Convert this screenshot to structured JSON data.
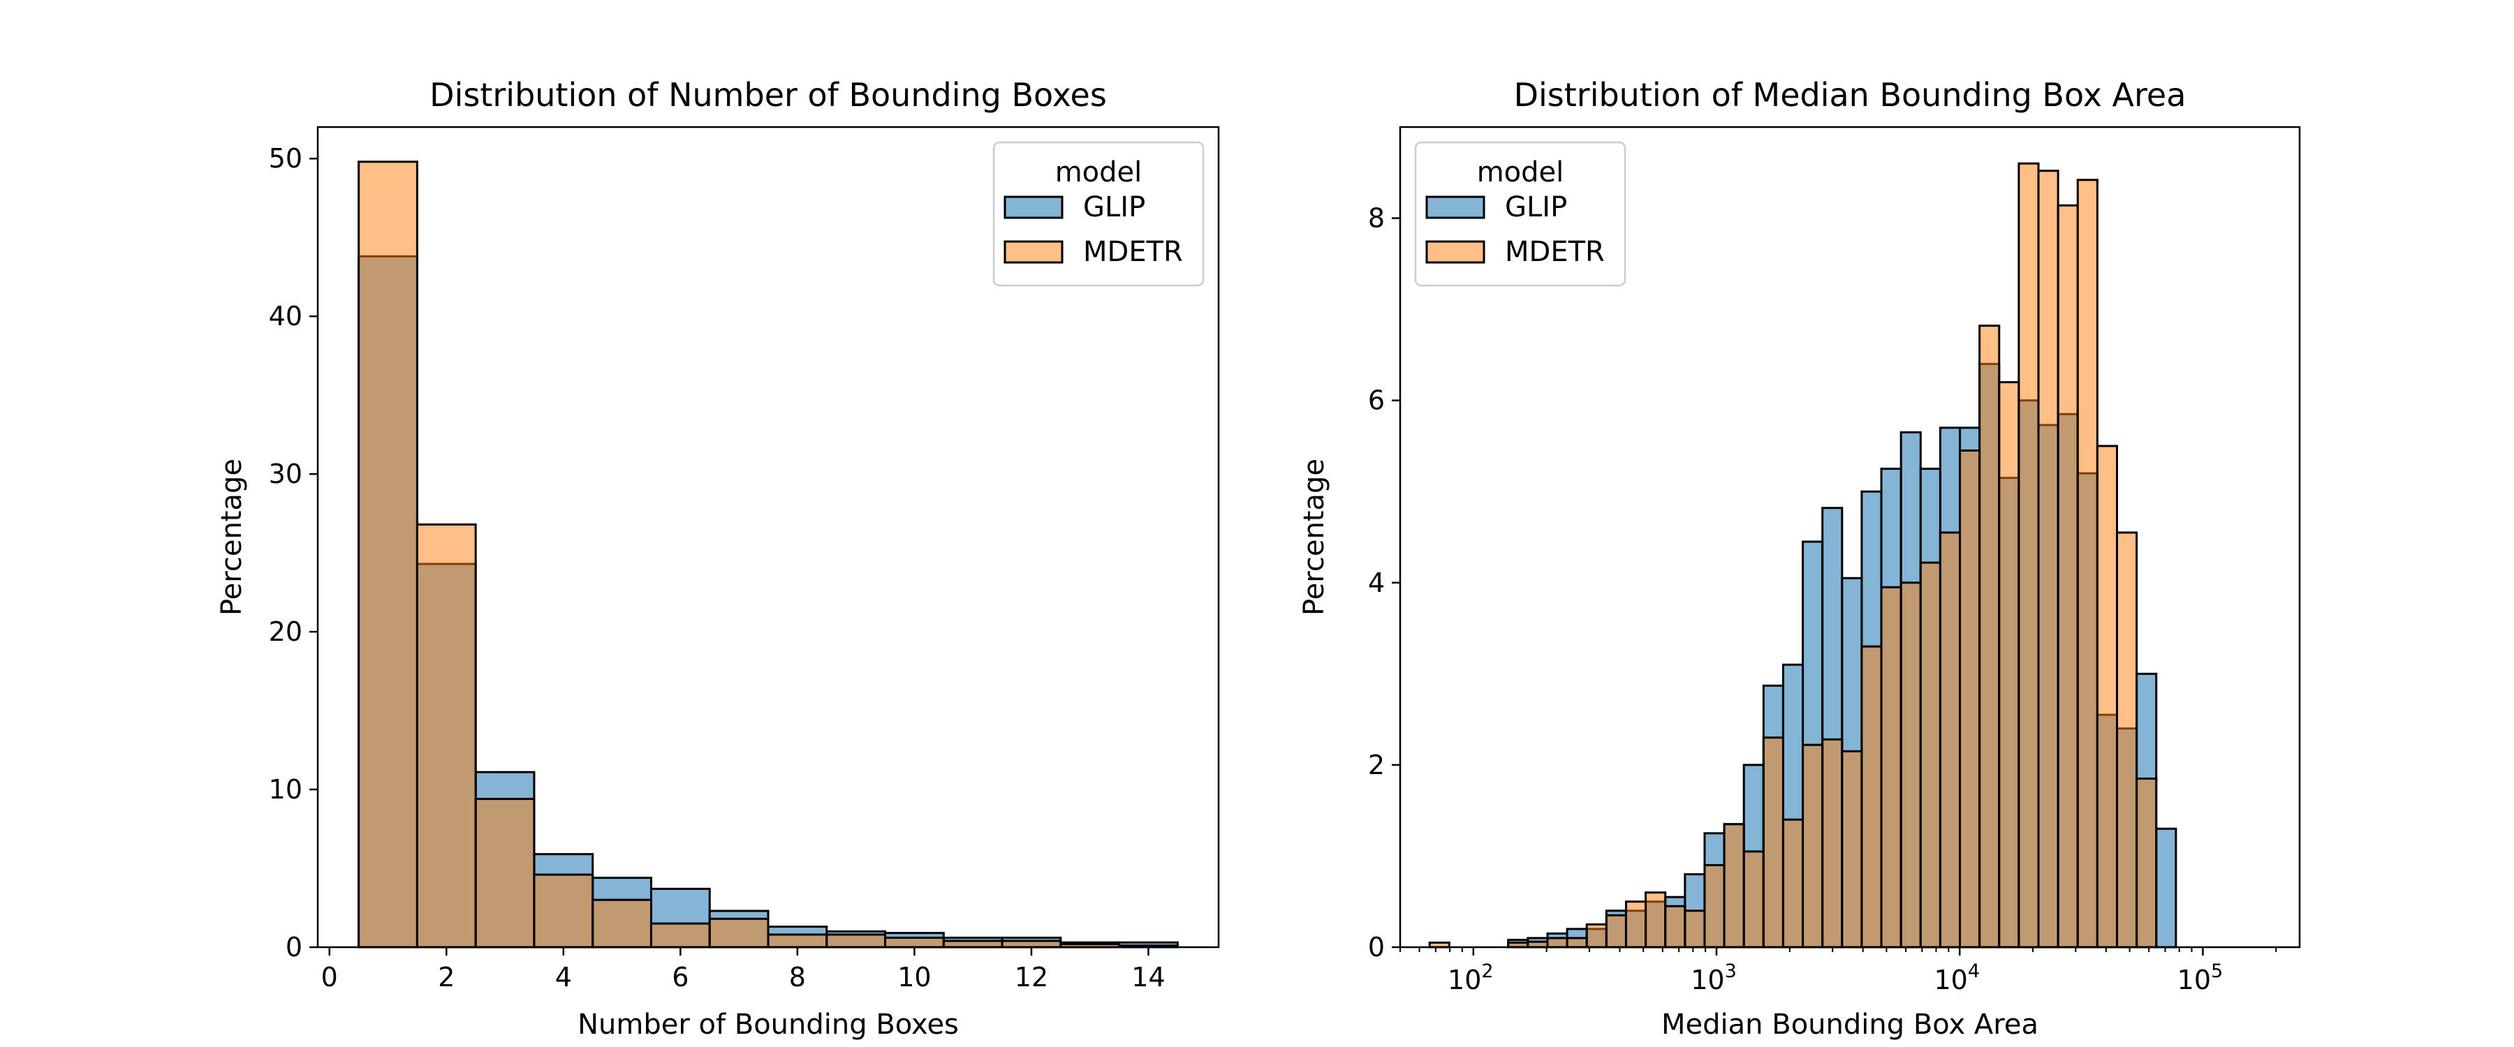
{
  "chart_data": [
    {
      "type": "bar",
      "subtype": "histogram-overlay",
      "title": "Distribution of Number of Bounding Boxes",
      "xlabel": "Number of Bounding Boxes",
      "ylabel": "Percentage",
      "xlim": [
        -0.2,
        15.2
      ],
      "ylim": [
        0,
        52
      ],
      "xticks": [
        0,
        2,
        4,
        6,
        8,
        10,
        12,
        14
      ],
      "yticks": [
        0,
        10,
        20,
        30,
        40,
        50
      ],
      "legend": {
        "title": "model",
        "position": "top-right",
        "labels": [
          "GLIP",
          "MDETR"
        ]
      },
      "bin_edges": [
        0.5,
        1.5,
        2.5,
        3.5,
        4.5,
        5.5,
        6.5,
        7.5,
        8.5,
        9.5,
        10.5,
        11.5,
        12.5,
        13.5,
        14.5
      ],
      "series": [
        {
          "name": "GLIP",
          "values": [
            43.8,
            24.3,
            11.1,
            5.9,
            4.4,
            3.7,
            2.3,
            1.3,
            1.0,
            0.9,
            0.6,
            0.6,
            0.3,
            0.3
          ]
        },
        {
          "name": "MDETR",
          "values": [
            49.8,
            26.8,
            9.4,
            4.6,
            3.0,
            1.5,
            1.8,
            0.8,
            0.8,
            0.6,
            0.4,
            0.4,
            0.2,
            0.1
          ]
        }
      ]
    },
    {
      "type": "bar",
      "subtype": "histogram-overlay",
      "title": "Distribution of Median Bounding Box Area",
      "xlabel": "Median Bounding Box Area",
      "ylabel": "Percentage",
      "xscale": "log",
      "xlim": [
        50,
        250000
      ],
      "ylim": [
        0,
        9
      ],
      "xticks": [
        {
          "base": "10",
          "exp": "2",
          "value": 100
        },
        {
          "base": "10",
          "exp": "3",
          "value": 1000
        },
        {
          "base": "10",
          "exp": "4",
          "value": 10000
        },
        {
          "base": "10",
          "exp": "5",
          "value": 100000
        }
      ],
      "yticks": [
        0,
        2,
        4,
        6,
        8
      ],
      "legend": {
        "title": "model",
        "position": "top-left",
        "labels": [
          "GLIP",
          "MDETR"
        ]
      },
      "bin_edges": [
        66.1,
        79.6,
        95.9,
        115.5,
        139.1,
        167.5,
        201.8,
        243,
        292.7,
        352.5,
        424.5,
        511.3,
        615.8,
        741.7,
        893.3,
        1075.8,
        1295.7,
        1560.5,
        1879.4,
        2263.5,
        2726.2,
        3283.3,
        3954.3,
        4762.4,
        5735.7,
        6907.9,
        8319.6,
        10019.8,
        12067.6,
        14533.8,
        17504,
        21081.2,
        25389.5,
        30578.2,
        36827.4,
        44353.8,
        53418.2,
        64335.2,
        77483.2,
        93318.2,
        112389.4,
        135358.3,
        163020.9
      ],
      "series": [
        {
          "name": "GLIP",
          "values": [
            0,
            0,
            0,
            0,
            0.08,
            0.1,
            0.15,
            0.2,
            0.2,
            0.4,
            0.4,
            0.5,
            0.55,
            0.8,
            1.25,
            1.35,
            2.0,
            2.87,
            3.1,
            4.45,
            4.82,
            4.05,
            5.0,
            5.25,
            5.65,
            5.25,
            5.7,
            5.7,
            6.4,
            5.15,
            6.0,
            5.73,
            5.85,
            5.2,
            2.55,
            2.4,
            3.0,
            1.3,
            0,
            0,
            0,
            0
          ]
        },
        {
          "name": "MDETR",
          "values": [
            0.05,
            0,
            0,
            0,
            0.05,
            0.06,
            0.1,
            0.1,
            0.25,
            0.35,
            0.5,
            0.6,
            0.45,
            0.4,
            0.9,
            1.35,
            1.05,
            2.3,
            1.4,
            2.22,
            2.28,
            2.15,
            3.3,
            3.95,
            4.0,
            4.22,
            4.55,
            5.45,
            6.82,
            6.2,
            8.6,
            8.52,
            8.14,
            8.42,
            5.5,
            4.55,
            1.85,
            0,
            0,
            0,
            0,
            0
          ]
        }
      ]
    }
  ]
}
